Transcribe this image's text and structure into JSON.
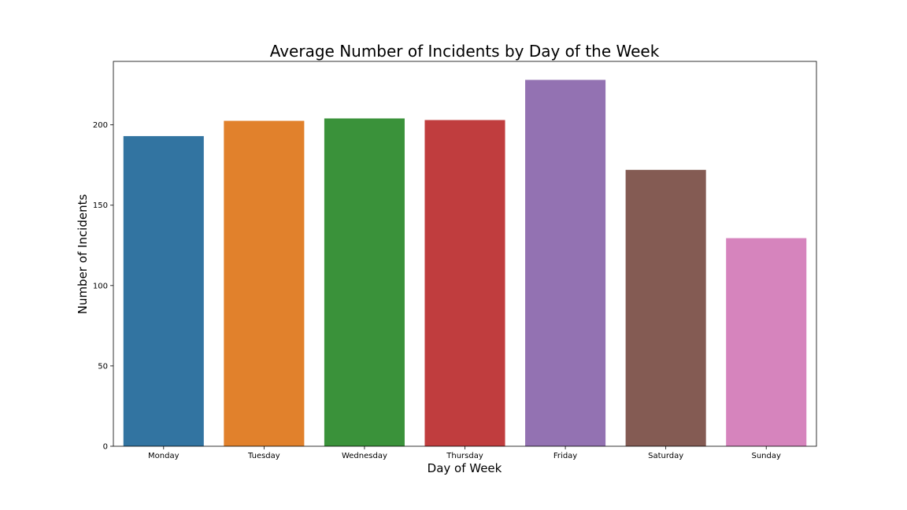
{
  "chart_data": {
    "type": "bar",
    "title": "Average Number of Incidents by Day of the Week",
    "xlabel": "Day of Week",
    "ylabel": "Number of Incidents",
    "categories": [
      "Monday",
      "Tuesday",
      "Wednesday",
      "Thursday",
      "Friday",
      "Saturday",
      "Sunday"
    ],
    "values": [
      193,
      202.5,
      204,
      203,
      228,
      172,
      129.5
    ],
    "colors": [
      "#3274a1",
      "#e1812c",
      "#3a923a",
      "#c03d3e",
      "#9372b2",
      "#845b53",
      "#d684bd"
    ],
    "ylim": [
      0,
      239.5
    ],
    "yticks": [
      0,
      50,
      100,
      150,
      200
    ],
    "grid": false,
    "legend": "none"
  }
}
